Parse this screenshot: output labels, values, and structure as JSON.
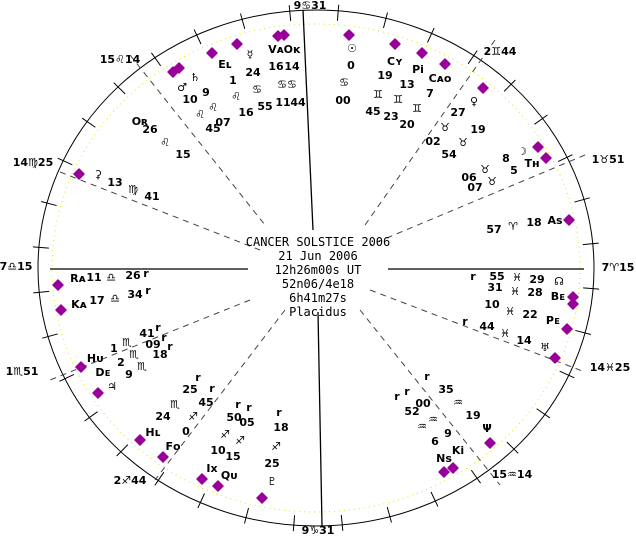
{
  "chart_info": {
    "title": "CANCER SOLSTICE 2006",
    "date": "21 Jun 2006",
    "time": "12h26m00s UT",
    "location": "52n06/4e18",
    "sidereal_time": "6h41m27s",
    "house_system": "Placidus"
  },
  "cusps": [
    "9♋31",
    "2♊44",
    "1♉51",
    "7♈15",
    "14♓25",
    "15♒14",
    "9♑31",
    "2♐44",
    "1♏51",
    "7♎15",
    "14♍25",
    "15♌14"
  ],
  "labels": [
    "Eʟ",
    "♄",
    "♂",
    "9",
    "1",
    "10",
    "♌",
    "♌",
    "♌",
    "16",
    "45",
    "07",
    "☿",
    "24",
    "♋",
    "55",
    "Vᴀ",
    "Oᴋ",
    "16",
    "14",
    "♋♋",
    "11",
    "44",
    "☉",
    "0",
    "♋",
    "00",
    "Cʏ",
    "19",
    "♊",
    "45",
    "Pi",
    "13",
    "♊",
    "23",
    "Cᴀᴏ",
    "7",
    "♊",
    "20",
    "♀",
    "27",
    "♉",
    "19",
    "02",
    "♉",
    "54",
    "Oʀ",
    "26",
    "♌",
    "15",
    "⚳",
    "13",
    "♍",
    "41",
    "Rᴀ",
    "11",
    "♎",
    "26",
    "r",
    "Kᴀ",
    "17",
    "♎",
    "34",
    "r",
    "☽",
    "8",
    "Tʜ",
    "5",
    "♉",
    "06",
    "♉",
    "07",
    "Aѕ",
    "18",
    "♈",
    "57",
    "r",
    "55",
    "♓",
    "29",
    "☊",
    "31",
    "♓",
    "28",
    "Bᴇ",
    "10",
    "♓",
    "22",
    "Pᴇ",
    "r",
    "44",
    "♓",
    "14",
    "♅",
    "41",
    "r",
    "09",
    "r",
    "18",
    "r",
    "1",
    "♏",
    "2",
    "♏",
    "9",
    "♏",
    "Hᴜ",
    "Dᴇ",
    "♃",
    "r",
    "25",
    "r",
    "♏",
    "45",
    "24",
    "♐",
    "0",
    "Hʟ",
    "Fᴏ",
    "r",
    "r",
    "50",
    "05",
    "♐",
    "♐",
    "10",
    "15",
    "r",
    "18",
    "♐",
    "25",
    "Ix",
    "Qᴜ",
    "♇",
    "r",
    "35",
    "r",
    "r",
    "00",
    "52",
    "♒",
    "19",
    "♒",
    "♒",
    "9",
    "6",
    "Ψ",
    "Ki",
    "Nѕ"
  ],
  "colors": {
    "points": "#990099",
    "inner_ring": "#e6e600",
    "lines": "#000000"
  }
}
